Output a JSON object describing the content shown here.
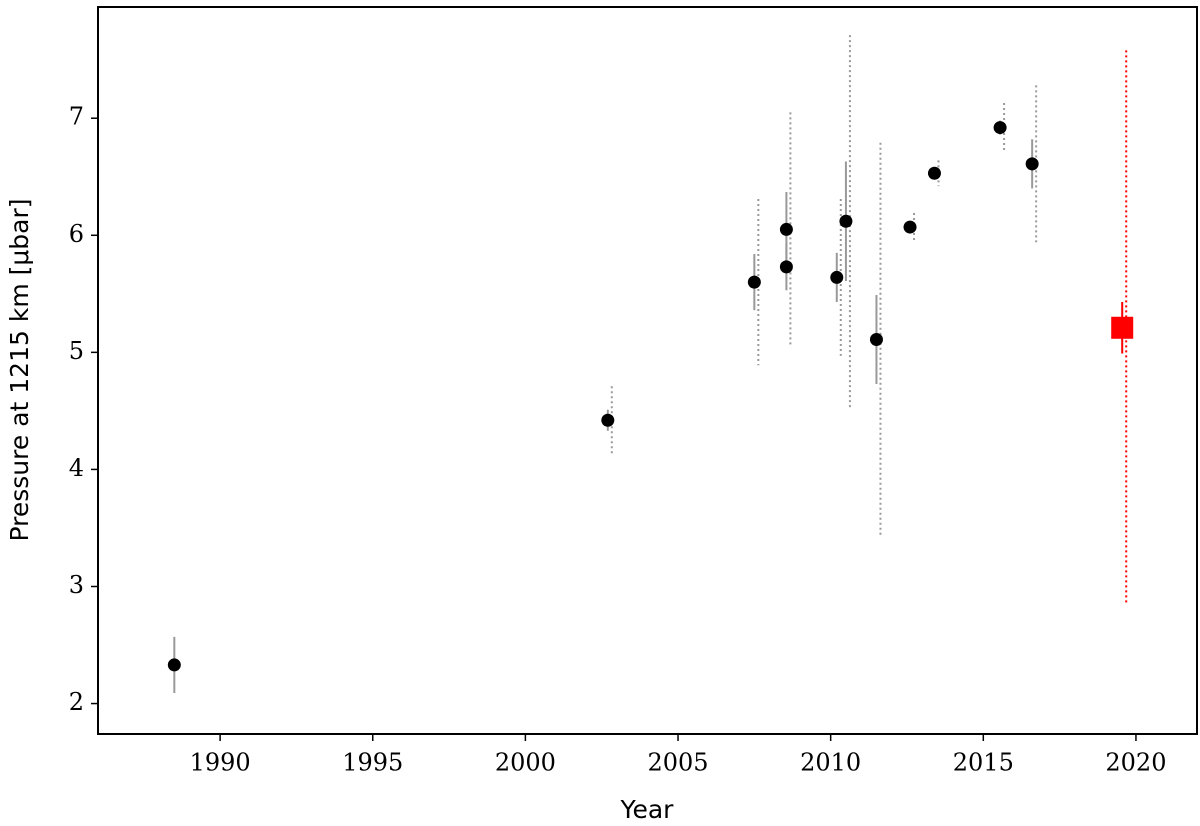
{
  "chart_data": {
    "type": "scatter",
    "xlabel": "Year",
    "ylabel": "Pressure at 1215 km [μbar]",
    "xlim": [
      1986,
      2022
    ],
    "ylim": [
      1.74,
      7.95
    ],
    "xticks": [
      1990,
      1995,
      2000,
      2005,
      2010,
      2015,
      2020
    ],
    "yticks": [
      2,
      3,
      4,
      5,
      6,
      7
    ],
    "series": [
      {
        "color": "#000000",
        "error_color": "#999999",
        "marker": "circle",
        "x": [
          1988.5,
          2002.7,
          2007.5,
          2008.55,
          2008.55,
          2010.2,
          2010.5,
          2011.5,
          2012.6,
          2013.4,
          2015.55,
          2016.6
        ],
        "values": [
          2.33,
          4.42,
          5.6,
          6.05,
          5.73,
          5.64,
          6.12,
          5.11,
          6.07,
          6.53,
          6.92,
          6.61
        ],
        "errors": [
          0.24,
          0.09,
          0.24,
          0.32,
          0.2,
          0.21,
          0.51,
          0.38,
          0.05,
          0.05,
          0.06,
          0.21
        ],
        "sys_errors": [
          null,
          0.29,
          0.71,
          1.0,
          null,
          0.67,
          1.59,
          1.68,
          0.12,
          0.11,
          0.21,
          0.67
        ]
      },
      {
        "color": "#ff0000",
        "error_color": "#ff0000",
        "marker": "square",
        "x": [
          2019.55
        ],
        "values": [
          5.21
        ],
        "errors": [
          0.22
        ],
        "sys_errors": [
          2.37
        ]
      }
    ]
  }
}
